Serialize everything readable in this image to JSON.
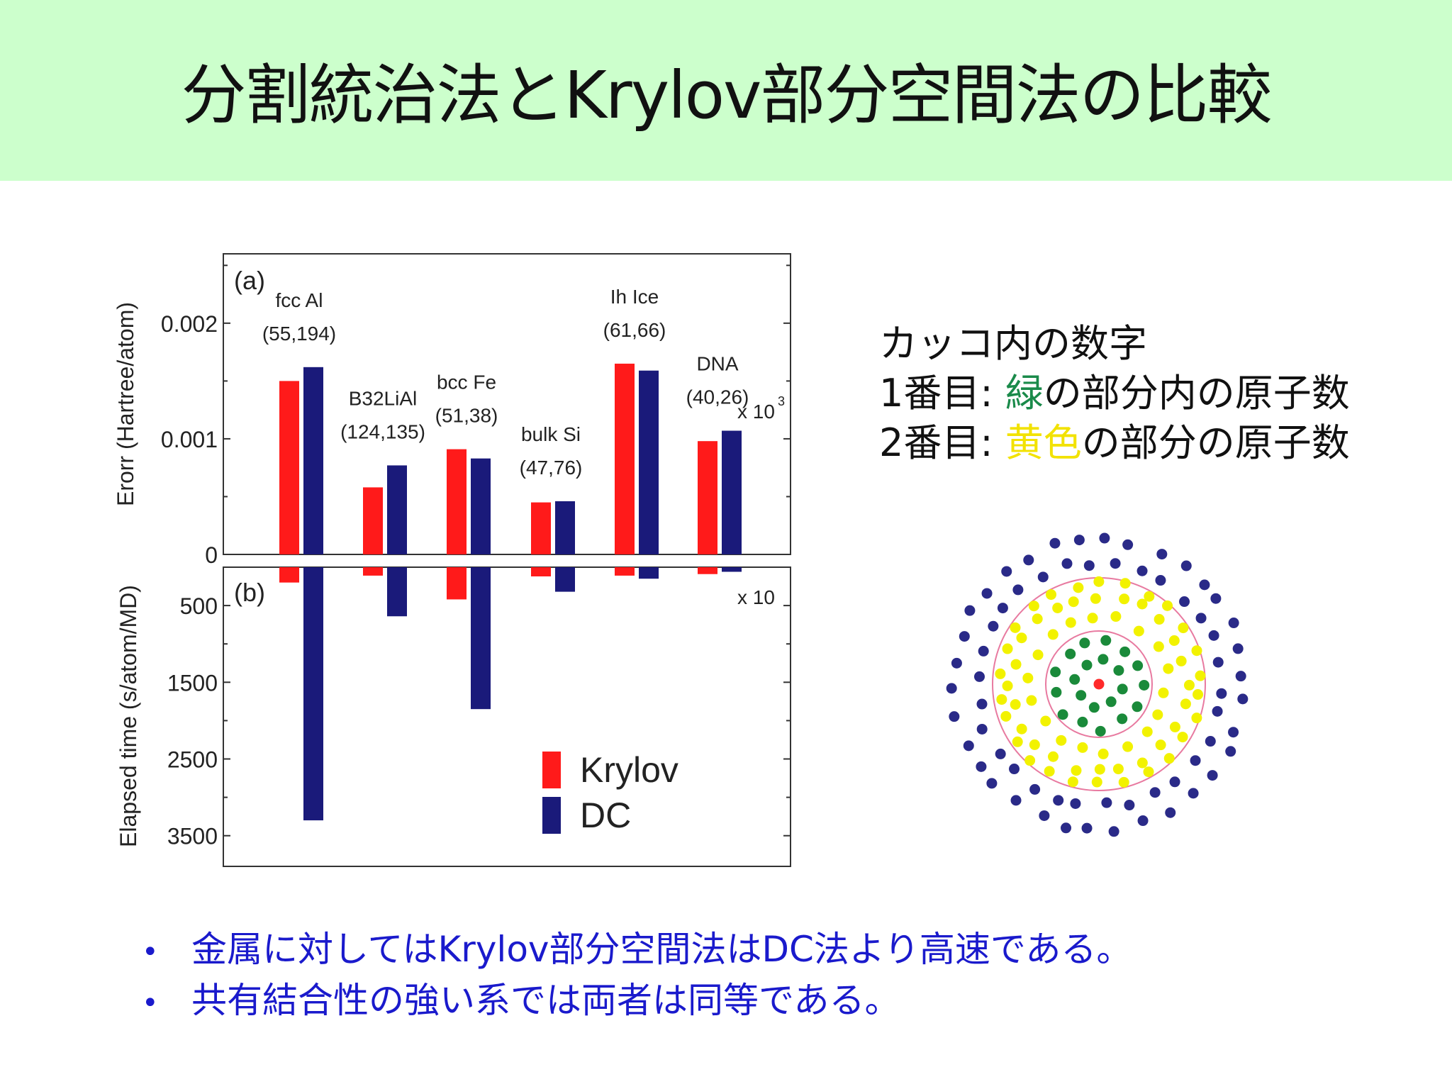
{
  "slide": {
    "title": "分割統治法とKrylov部分空間法の比較"
  },
  "note": {
    "heading": "カッコ内の数字",
    "line1_prefix": "1番目: ",
    "line1_color_word": "緑",
    "line1_suffix": "の部分内の原子数",
    "line2_prefix": "2番目: ",
    "line2_color_word": "黄色",
    "line2_suffix": "の部分の原子数"
  },
  "bullets": [
    "金属に対してはKrylov部分空間法はDC法より高速である。",
    "共有結合性の強い系では両者は同等である。"
  ],
  "colors": {
    "krylov": "#ff1a1a",
    "dc": "#1a1a7a",
    "title_bg": "#ccffcc",
    "bullet_text": "#1a1acc",
    "green_atoms": "#1a8a3a",
    "yellow_atoms": "#f2f200",
    "outer_atoms": "#2a2a88",
    "center_atom": "#ff2a2a",
    "circles": "#e87aa0"
  },
  "chart_data": [
    {
      "type": "bar",
      "panel_label": "(a)",
      "ylabel": "Erorr (Hartree/atom)",
      "multiplier_label": "x 10",
      "multiplier_exponent": "3",
      "ylim": [
        0,
        0.0026
      ],
      "yticks": [
        0,
        0.001,
        0.002
      ],
      "ytick_labels": [
        "0",
        "0.001",
        "0.002"
      ],
      "categories": [
        "fcc Al",
        "B32LiAl",
        "bcc Fe",
        "bulk Si",
        "Ih Ice",
        "DNA"
      ],
      "category_counts": [
        "(55,194)",
        "(124,135)",
        "(51,38)",
        "(47,76)",
        "(61,66)",
        "(40,26)"
      ],
      "series": [
        {
          "name": "Krylov",
          "values": [
            0.0015,
            0.00058,
            0.00091,
            0.00045,
            0.00165,
            0.00098
          ]
        },
        {
          "name": "DC",
          "values": [
            0.00162,
            0.00077,
            0.00083,
            0.00046,
            0.00159,
            0.00107
          ]
        }
      ]
    },
    {
      "type": "bar",
      "panel_label": "(b)",
      "ylabel": "Elapsed time (s/atom/MD)",
      "multiplier_label": "x 10",
      "ylim": [
        0,
        3900
      ],
      "yticks": [
        500,
        1500,
        2500,
        3500
      ],
      "ytick_labels": [
        "500",
        "1500",
        "2500",
        "3500"
      ],
      "categories": [
        "fcc Al",
        "B32LiAl",
        "bcc Fe",
        "bulk Si",
        "Ih Ice",
        "DNA"
      ],
      "series": [
        {
          "name": "Krylov",
          "values": [
            200,
            110,
            420,
            120,
            110,
            90
          ]
        },
        {
          "name": "DC",
          "values": [
            3300,
            640,
            1850,
            320,
            150,
            60
          ]
        }
      ],
      "legend": [
        "Krylov",
        "DC"
      ],
      "legend_position": "bottom-right"
    }
  ]
}
